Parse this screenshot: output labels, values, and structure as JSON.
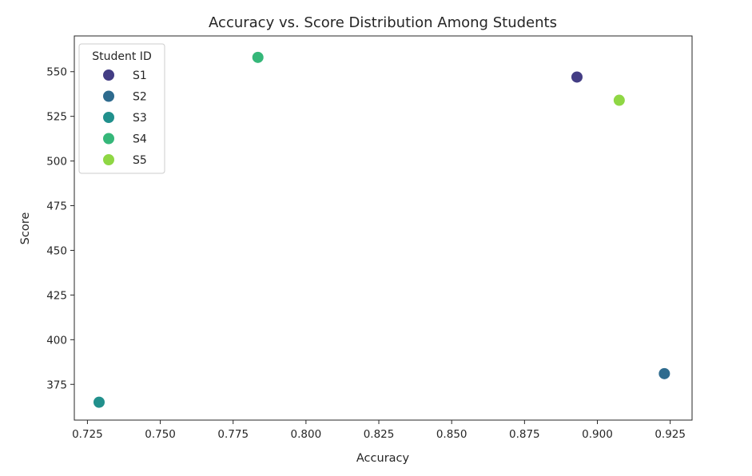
{
  "chart_data": {
    "type": "scatter",
    "title": "Accuracy vs. Score Distribution Among Students",
    "xlabel": "Accuracy",
    "ylabel": "Score",
    "xlim": [
      0.7205,
      0.9325
    ],
    "ylim": [
      355,
      570
    ],
    "xticks": [
      0.725,
      0.75,
      0.775,
      0.8,
      0.825,
      0.85,
      0.875,
      0.9,
      0.925
    ],
    "xtick_labels": [
      "0.725",
      "0.750",
      "0.775",
      "0.800",
      "0.825",
      "0.850",
      "0.875",
      "0.900",
      "0.925"
    ],
    "yticks": [
      375,
      400,
      425,
      450,
      475,
      500,
      525,
      550
    ],
    "ytick_labels": [
      "375",
      "400",
      "425",
      "450",
      "475",
      "500",
      "525",
      "550"
    ],
    "grid": false,
    "legend": {
      "title": "Student ID",
      "placement": "top-left"
    },
    "series": [
      {
        "name": "S1",
        "color": "#433d84",
        "x": [
          0.893
        ],
        "y": [
          547
        ]
      },
      {
        "name": "S2",
        "color": "#2e6b8e",
        "x": [
          0.923
        ],
        "y": [
          381
        ]
      },
      {
        "name": "S3",
        "color": "#21908c",
        "x": [
          0.729
        ],
        "y": [
          365
        ]
      },
      {
        "name": "S4",
        "color": "#35b779",
        "x": [
          0.7835
        ],
        "y": [
          558
        ]
      },
      {
        "name": "S5",
        "color": "#8fd744",
        "x": [
          0.9075
        ],
        "y": [
          534
        ]
      }
    ]
  }
}
